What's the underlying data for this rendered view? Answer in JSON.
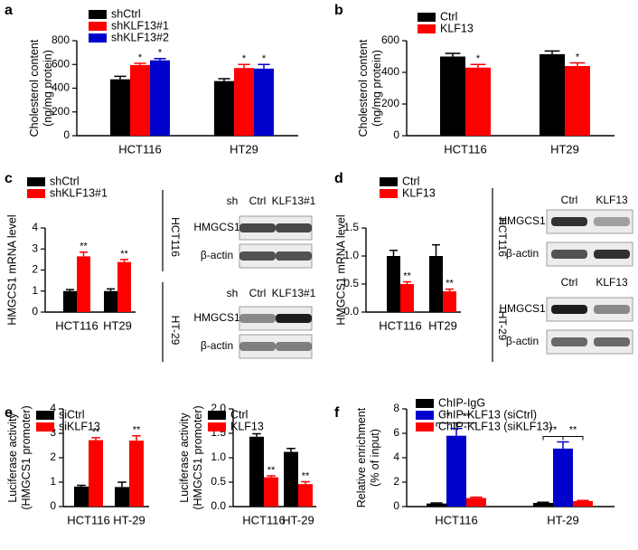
{
  "chart_data": [
    {
      "type": "bar",
      "panel": "a",
      "ylabel": [
        "Cholesterol content",
        "(ng/mg protein)"
      ],
      "categories": [
        "HCT116",
        "HT29"
      ],
      "ylim": [
        0,
        800
      ],
      "yticks": [
        0,
        200,
        400,
        600,
        800
      ],
      "series": [
        {
          "name": "shCtrl",
          "color": "#000000",
          "values": [
            475,
            460
          ],
          "errors": [
            25,
            20
          ]
        },
        {
          "name": "shKLF13#1",
          "color": "#ff0000",
          "values": [
            595,
            570
          ],
          "errors": [
            15,
            30
          ],
          "sig": [
            "*",
            "*"
          ]
        },
        {
          "name": "shKLF13#2",
          "color": "#0000cc",
          "values": [
            635,
            565
          ],
          "errors": [
            15,
            35
          ],
          "sig": [
            "*",
            "*"
          ]
        }
      ]
    },
    {
      "type": "bar",
      "panel": "b",
      "ylabel": [
        "Cholesterol content",
        "(ng/mg protein)"
      ],
      "categories": [
        "HCT116",
        "HT29"
      ],
      "ylim": [
        0,
        600
      ],
      "yticks": [
        0,
        200,
        400,
        600
      ],
      "series": [
        {
          "name": "Ctrl",
          "color": "#000000",
          "values": [
            500,
            515
          ],
          "errors": [
            20,
            20
          ]
        },
        {
          "name": "KLF13",
          "color": "#ff0000",
          "values": [
            430,
            440
          ],
          "errors": [
            20,
            20
          ],
          "sig": [
            "*",
            "*"
          ]
        }
      ]
    },
    {
      "type": "bar",
      "panel": "c",
      "ylabel": [
        "HMGCS1 mRNA level"
      ],
      "categories": [
        "HCT116",
        "HT29"
      ],
      "ylim": [
        0,
        4
      ],
      "yticks": [
        0,
        1,
        2,
        3,
        4
      ],
      "series": [
        {
          "name": "shCtrl",
          "color": "#000000",
          "values": [
            1,
            1
          ],
          "errors": [
            0.07,
            0.1
          ]
        },
        {
          "name": "shKLF13#1",
          "color": "#ff0000",
          "values": [
            2.65,
            2.38
          ],
          "errors": [
            0.2,
            0.12
          ],
          "sig": [
            "**",
            "**"
          ]
        }
      ]
    },
    {
      "type": "bar",
      "panel": "d",
      "ylabel": [
        "HMGCS1 mRNA level"
      ],
      "categories": [
        "HCT116",
        "HT29"
      ],
      "ylim": [
        0,
        1.5
      ],
      "yticks": [
        {
          "value": 0,
          "label": "0.0"
        },
        0.5,
        {
          "value": 1,
          "label": "1.0"
        },
        1.5
      ],
      "series": [
        {
          "name": "Ctrl",
          "color": "#000000",
          "values": [
            1,
            1
          ],
          "errors": [
            0.1,
            0.2
          ]
        },
        {
          "name": "KLF13",
          "color": "#ff0000",
          "values": [
            0.5,
            0.37
          ],
          "errors": [
            0.04,
            0.04
          ],
          "sig": [
            "**",
            "**"
          ]
        }
      ]
    },
    {
      "type": "bar",
      "panel": "e",
      "ylabel": [
        "Luciferase activity",
        "(HMGCS1 promoter)"
      ],
      "categories": [
        "HCT116",
        "HT-29"
      ],
      "ylim": [
        0,
        4
      ],
      "yticks": [
        0,
        1,
        2,
        3,
        4
      ],
      "series": [
        {
          "name": "siCtrl",
          "color": "#000000",
          "values": [
            0.82,
            0.8
          ],
          "errors": [
            0.05,
            0.2
          ]
        },
        {
          "name": "siKLF13",
          "color": "#ff0000",
          "values": [
            2.72,
            2.7
          ],
          "errors": [
            0.1,
            0.2
          ],
          "sig": [
            "**",
            "**"
          ]
        }
      ]
    },
    {
      "type": "bar",
      "ylabel": [
        "Luciferase activity",
        "(HMGCS1 promoter)"
      ],
      "categories": [
        "HCT116",
        "HT-29"
      ],
      "ylim": [
        0,
        2
      ],
      "yticks": [
        {
          "value": 0,
          "label": "0.0"
        },
        0.5,
        {
          "value": 1,
          "label": "1.0"
        },
        1.5,
        {
          "value": 2,
          "label": "2.0"
        }
      ],
      "series": [
        {
          "name": "Ctrl",
          "color": "#000000",
          "values": [
            1.43,
            1.12
          ],
          "errors": [
            0.06,
            0.07
          ]
        },
        {
          "name": "KLF13",
          "color": "#ff0000",
          "values": [
            0.6,
            0.46
          ],
          "errors": [
            0.03,
            0.05
          ],
          "sig": [
            "**",
            "**"
          ]
        }
      ]
    },
    {
      "type": "bar",
      "panel": "f",
      "ylabel": [
        "Relative enrichment",
        "(% of input)"
      ],
      "categories": [
        "HCT116",
        "HT-29"
      ],
      "ylim": [
        0,
        8
      ],
      "yticks": [
        0,
        2,
        4,
        6,
        8
      ],
      "brackets": [
        [
          "**",
          "**"
        ],
        [
          "**",
          "**"
        ]
      ],
      "series": [
        {
          "name": "ChIP-IgG",
          "color": "#000000",
          "values": [
            0.25,
            0.3
          ],
          "errors": [
            0.05,
            0.05
          ]
        },
        {
          "name": "ChIP-KLF13 (siCtrl)",
          "color": "#0000cc",
          "values": [
            5.8,
            4.75
          ],
          "errors": [
            0.6,
            0.55
          ]
        },
        {
          "name": "ChIP-KLF13 (siKLF13)",
          "color": "#ff0000",
          "values": [
            0.7,
            0.45
          ],
          "errors": [
            0.07,
            0.05
          ]
        }
      ]
    }
  ],
  "blots": [
    {
      "sections": [
        {
          "header": [
            "sh",
            "Ctrl",
            "KLF13#1"
          ],
          "cell": "HCT116",
          "rows": [
            "HMGCS1",
            "β-actin"
          ]
        },
        {
          "header": [
            "sh",
            "Ctrl",
            "KLF13#1"
          ],
          "cell": "HT-29",
          "rows": [
            "HMGCS1",
            "β-actin"
          ]
        }
      ]
    },
    {
      "sections": [
        {
          "header": [
            "Ctrl",
            "KLF13"
          ],
          "cell": "HCT116",
          "rows": [
            "HMGCS1",
            "β-actin"
          ]
        },
        {
          "header": [
            "Ctrl",
            "KLF13"
          ],
          "cell": "HT-29",
          "rows": [
            "HMGCS1",
            "β-actin"
          ]
        }
      ]
    }
  ]
}
